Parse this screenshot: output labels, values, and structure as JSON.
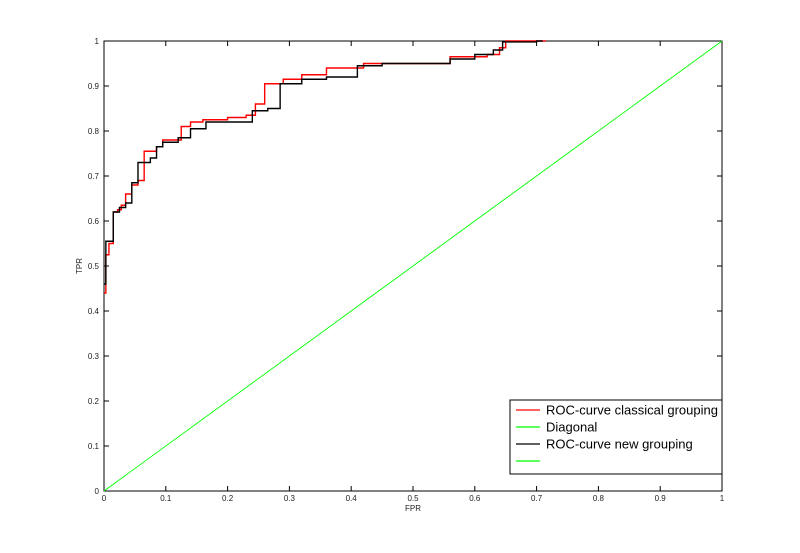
{
  "chart_data": {
    "type": "line",
    "title": "",
    "xlabel": "FPR",
    "ylabel": "TPR",
    "xlim": [
      0,
      1
    ],
    "ylim": [
      0,
      1
    ],
    "xticks": [
      "0",
      "0.1",
      "0.2",
      "0.3",
      "0.4",
      "0.5",
      "0.6",
      "0.7",
      "0.8",
      "0.9",
      "1"
    ],
    "yticks": [
      "0",
      "0.1",
      "0.2",
      "0.3",
      "0.4",
      "0.5",
      "0.6",
      "0.7",
      "0.8",
      "0.9",
      "1"
    ],
    "grid": false,
    "legend_position": "bottom-right",
    "series": [
      {
        "name": "ROC-curve classical grouping",
        "color": "#ff0000",
        "x": [
          0,
          0.003,
          0.003,
          0.008,
          0.008,
          0.015,
          0.015,
          0.022,
          0.022,
          0.028,
          0.028,
          0.035,
          0.035,
          0.045,
          0.045,
          0.055,
          0.055,
          0.065,
          0.065,
          0.075,
          0.075,
          0.085,
          0.085,
          0.095,
          0.095,
          0.11,
          0.11,
          0.125,
          0.125,
          0.14,
          0.14,
          0.16,
          0.16,
          0.2,
          0.2,
          0.23,
          0.23,
          0.245,
          0.245,
          0.26,
          0.26,
          0.29,
          0.29,
          0.32,
          0.32,
          0.36,
          0.36,
          0.42,
          0.42,
          0.5,
          0.5,
          0.56,
          0.56,
          0.62,
          0.62,
          0.64,
          0.64,
          0.65,
          0.65,
          0.715
        ],
        "y": [
          0.44,
          0.44,
          0.525,
          0.525,
          0.55,
          0.55,
          0.62,
          0.62,
          0.625,
          0.625,
          0.635,
          0.635,
          0.66,
          0.66,
          0.68,
          0.68,
          0.69,
          0.69,
          0.755,
          0.755,
          0.755,
          0.755,
          0.765,
          0.765,
          0.78,
          0.78,
          0.78,
          0.78,
          0.81,
          0.81,
          0.82,
          0.82,
          0.825,
          0.825,
          0.83,
          0.83,
          0.835,
          0.835,
          0.86,
          0.86,
          0.905,
          0.905,
          0.915,
          0.915,
          0.925,
          0.925,
          0.94,
          0.94,
          0.95,
          0.95,
          0.95,
          0.95,
          0.965,
          0.965,
          0.97,
          0.97,
          0.985,
          0.985,
          1.0,
          1.0
        ]
      },
      {
        "name": "Diagonal",
        "color": "#00ff00",
        "x": [
          0,
          1
        ],
        "y": [
          0,
          1
        ]
      },
      {
        "name": "ROC-curve new grouping",
        "color": "#000000",
        "x": [
          0,
          0.003,
          0.003,
          0.015,
          0.015,
          0.025,
          0.025,
          0.035,
          0.035,
          0.045,
          0.045,
          0.055,
          0.055,
          0.075,
          0.075,
          0.085,
          0.085,
          0.095,
          0.095,
          0.12,
          0.12,
          0.14,
          0.14,
          0.165,
          0.165,
          0.24,
          0.24,
          0.265,
          0.265,
          0.285,
          0.285,
          0.32,
          0.32,
          0.36,
          0.36,
          0.41,
          0.41,
          0.45,
          0.45,
          0.56,
          0.56,
          0.6,
          0.6,
          0.63,
          0.63,
          0.645,
          0.645,
          0.7,
          0.7,
          0.71
        ],
        "y": [
          0.46,
          0.46,
          0.555,
          0.555,
          0.62,
          0.62,
          0.63,
          0.63,
          0.64,
          0.64,
          0.685,
          0.685,
          0.73,
          0.73,
          0.74,
          0.74,
          0.765,
          0.765,
          0.775,
          0.775,
          0.785,
          0.785,
          0.805,
          0.805,
          0.82,
          0.82,
          0.845,
          0.845,
          0.85,
          0.85,
          0.905,
          0.905,
          0.915,
          0.915,
          0.92,
          0.92,
          0.945,
          0.945,
          0.95,
          0.95,
          0.96,
          0.96,
          0.97,
          0.97,
          0.98,
          0.98,
          0.998,
          0.998,
          1.0,
          1.0
        ]
      },
      {
        "name": "",
        "color": "#00ff00",
        "x": [],
        "y": []
      }
    ]
  }
}
